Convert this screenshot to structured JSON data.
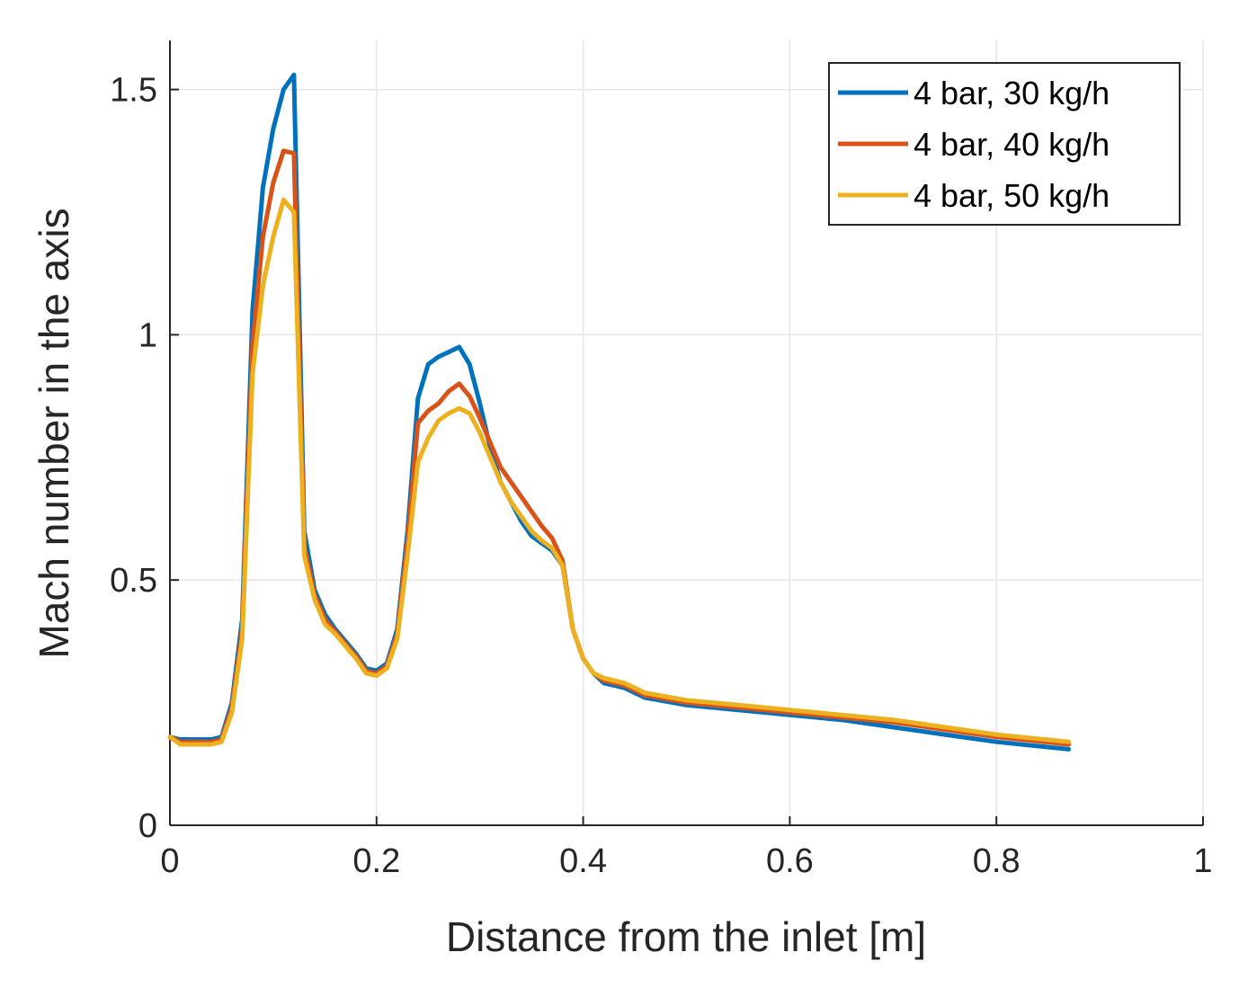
{
  "chart_data": {
    "type": "line",
    "title": "",
    "xlabel": "Distance from the inlet [m]",
    "ylabel": "Mach number in the axis",
    "xlim": [
      0,
      1
    ],
    "ylim": [
      0,
      1.6
    ],
    "xticks": [
      0,
      0.2,
      0.4,
      0.6,
      0.8,
      1
    ],
    "xtick_labels": [
      "0",
      "0.2",
      "0.4",
      "0.6",
      "0.8",
      "1"
    ],
    "yticks": [
      0,
      0.5,
      1,
      1.5
    ],
    "ytick_labels": [
      "0",
      "0.5",
      "1",
      "1.5"
    ],
    "grid": true,
    "legend_position": "top-right",
    "series": [
      {
        "name": "4 bar, 30 kg/h",
        "color": "#0072BD",
        "x": [
          0,
          0.01,
          0.02,
          0.03,
          0.04,
          0.05,
          0.06,
          0.07,
          0.08,
          0.09,
          0.1,
          0.11,
          0.12,
          0.13,
          0.14,
          0.15,
          0.16,
          0.18,
          0.19,
          0.2,
          0.21,
          0.22,
          0.23,
          0.24,
          0.25,
          0.26,
          0.27,
          0.28,
          0.29,
          0.3,
          0.31,
          0.32,
          0.33,
          0.34,
          0.35,
          0.36,
          0.37,
          0.38,
          0.39,
          0.4,
          0.41,
          0.42,
          0.44,
          0.46,
          0.5,
          0.55,
          0.6,
          0.65,
          0.7,
          0.75,
          0.8,
          0.87
        ],
        "y": [
          0.18,
          0.175,
          0.175,
          0.175,
          0.175,
          0.18,
          0.25,
          0.42,
          1.05,
          1.3,
          1.42,
          1.5,
          1.53,
          0.6,
          0.48,
          0.43,
          0.4,
          0.35,
          0.32,
          0.315,
          0.33,
          0.4,
          0.6,
          0.87,
          0.94,
          0.955,
          0.965,
          0.975,
          0.94,
          0.86,
          0.77,
          0.7,
          0.66,
          0.62,
          0.59,
          0.575,
          0.56,
          0.53,
          0.4,
          0.34,
          0.31,
          0.29,
          0.28,
          0.26,
          0.245,
          0.235,
          0.225,
          0.215,
          0.2,
          0.185,
          0.17,
          0.155
        ]
      },
      {
        "name": "4 bar, 40 kg/h",
        "color": "#D95319",
        "x": [
          0,
          0.01,
          0.02,
          0.03,
          0.04,
          0.05,
          0.06,
          0.07,
          0.08,
          0.09,
          0.1,
          0.11,
          0.12,
          0.13,
          0.14,
          0.15,
          0.16,
          0.18,
          0.19,
          0.2,
          0.21,
          0.22,
          0.23,
          0.24,
          0.25,
          0.26,
          0.27,
          0.28,
          0.29,
          0.3,
          0.31,
          0.32,
          0.33,
          0.34,
          0.35,
          0.36,
          0.37,
          0.38,
          0.39,
          0.4,
          0.41,
          0.42,
          0.44,
          0.46,
          0.5,
          0.55,
          0.6,
          0.65,
          0.7,
          0.75,
          0.8,
          0.87
        ],
        "y": [
          0.18,
          0.17,
          0.17,
          0.17,
          0.17,
          0.175,
          0.24,
          0.4,
          0.98,
          1.2,
          1.31,
          1.375,
          1.37,
          0.57,
          0.47,
          0.42,
          0.395,
          0.345,
          0.315,
          0.31,
          0.325,
          0.39,
          0.58,
          0.82,
          0.845,
          0.86,
          0.885,
          0.9,
          0.875,
          0.83,
          0.78,
          0.73,
          0.7,
          0.67,
          0.64,
          0.61,
          0.585,
          0.54,
          0.4,
          0.34,
          0.31,
          0.295,
          0.285,
          0.265,
          0.25,
          0.24,
          0.23,
          0.22,
          0.21,
          0.195,
          0.18,
          0.165
        ]
      },
      {
        "name": "4 bar, 50 kg/h",
        "color": "#EDB120",
        "x": [
          0,
          0.01,
          0.02,
          0.03,
          0.04,
          0.05,
          0.06,
          0.07,
          0.08,
          0.09,
          0.1,
          0.11,
          0.12,
          0.13,
          0.14,
          0.15,
          0.16,
          0.18,
          0.19,
          0.2,
          0.21,
          0.22,
          0.23,
          0.24,
          0.25,
          0.26,
          0.27,
          0.28,
          0.29,
          0.3,
          0.31,
          0.32,
          0.33,
          0.34,
          0.35,
          0.36,
          0.37,
          0.38,
          0.39,
          0.4,
          0.41,
          0.42,
          0.44,
          0.46,
          0.5,
          0.55,
          0.6,
          0.65,
          0.7,
          0.75,
          0.8,
          0.87
        ],
        "y": [
          0.18,
          0.165,
          0.165,
          0.165,
          0.165,
          0.17,
          0.23,
          0.38,
          0.92,
          1.1,
          1.2,
          1.275,
          1.25,
          0.55,
          0.46,
          0.41,
          0.39,
          0.34,
          0.31,
          0.305,
          0.32,
          0.38,
          0.55,
          0.74,
          0.79,
          0.825,
          0.84,
          0.85,
          0.84,
          0.8,
          0.75,
          0.7,
          0.66,
          0.63,
          0.6,
          0.58,
          0.565,
          0.53,
          0.4,
          0.34,
          0.31,
          0.3,
          0.29,
          0.27,
          0.255,
          0.245,
          0.235,
          0.225,
          0.215,
          0.2,
          0.185,
          0.17
        ]
      }
    ]
  }
}
